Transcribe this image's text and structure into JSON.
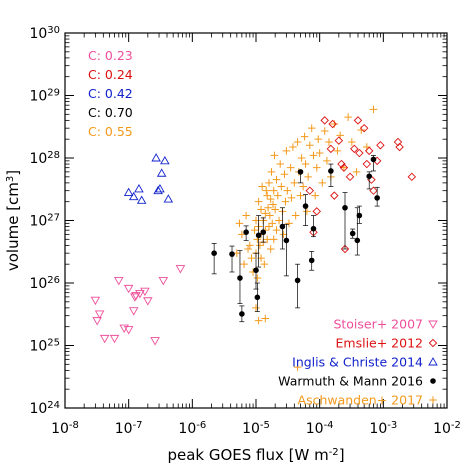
{
  "chart_data": {
    "type": "scatter",
    "xlabel": "peak GOES flux [W m",
    "xlabel_sup": "-2",
    "xlabel_end": "]",
    "ylabel": "volume [cm",
    "ylabel_sup": "3",
    "ylabel_end": "]",
    "x_scale": "log",
    "y_scale": "log",
    "xlim": [
      1e-08,
      0.01
    ],
    "ylim": [
      1e+24,
      1e+30
    ],
    "x_ticks": [
      {
        "value": 1e-08,
        "base": "10",
        "exp": "-8"
      },
      {
        "value": 1e-07,
        "base": "10",
        "exp": "-7"
      },
      {
        "value": 1e-06,
        "base": "10",
        "exp": "-6"
      },
      {
        "value": 1e-05,
        "base": "10",
        "exp": "-5"
      },
      {
        "value": 0.0001,
        "base": "10",
        "exp": "-4"
      },
      {
        "value": 0.001,
        "base": "10",
        "exp": "-3"
      },
      {
        "value": 0.01,
        "base": "10",
        "exp": "-2"
      }
    ],
    "y_ticks": [
      {
        "value": 1e+24,
        "base": "10",
        "exp": "24"
      },
      {
        "value": 1e+25,
        "base": "10",
        "exp": "25"
      },
      {
        "value": 1e+26,
        "base": "10",
        "exp": "26"
      },
      {
        "value": 1e+27,
        "base": "10",
        "exp": "27"
      },
      {
        "value": 1e+28,
        "base": "10",
        "exp": "28"
      },
      {
        "value": 1e+29,
        "base": "10",
        "exp": "29"
      },
      {
        "value": 1e+30,
        "base": "10",
        "exp": "30"
      }
    ],
    "correlations": [
      {
        "text": "C: 0.23",
        "color": "#ee4f9b"
      },
      {
        "text": "C: 0.24",
        "color": "#dd1111"
      },
      {
        "text": "C: 0.42",
        "color": "#1122cc"
      },
      {
        "text": "C: 0.70",
        "color": "#000000"
      },
      {
        "text": "C: 0.55",
        "color": "#f39a1d"
      }
    ],
    "series": [
      {
        "name": "Stoiser+ 2007",
        "marker": "triangle-down",
        "color": "#ee4f9b",
        "points": [
          [
            3e-08,
            5.3e+25
          ],
          [
            3.5e-08,
            3.2e+25
          ],
          [
            3.2e-08,
            2.5e+25
          ],
          [
            4.2e-08,
            1.3e+25
          ],
          [
            6e-08,
            1.3e+25
          ],
          [
            7e-08,
            1.1e+26
          ],
          [
            8.5e-08,
            1.9e+25
          ],
          [
            1e-07,
            1.8e+25
          ],
          [
            1e-07,
            8.2e+25
          ],
          [
            1.2e-07,
            3.6e+25
          ],
          [
            1.25e-07,
            6e+25
          ],
          [
            1.3e-07,
            6.3e+25
          ],
          [
            1.5e-07,
            6.8e+25
          ],
          [
            1.8e-07,
            7.4e+25
          ],
          [
            2e-07,
            5.2e+25
          ],
          [
            2.6e-07,
            1.2e+25
          ],
          [
            3.5e-07,
            1.1e+26
          ],
          [
            6.5e-07,
            1.7e+26
          ]
        ]
      },
      {
        "name": "Emslie+ 2012",
        "marker": "diamond",
        "color": "#dd1111",
        "points": [
          [
            7e-05,
            3e+27
          ],
          [
            8e-05,
            6.5e+26
          ],
          [
            9e-05,
            1.4e+27
          ],
          [
            0.00012,
            4e+28
          ],
          [
            0.00015,
            1.4e+28
          ],
          [
            0.00016,
            3.5e+28
          ],
          [
            0.00017,
            2.5e+27
          ],
          [
            0.0002,
            1.9e+28
          ],
          [
            0.00022,
            8e+27
          ],
          [
            0.00024,
            7e+27
          ],
          [
            0.00025,
            3.5e+26
          ],
          [
            0.0003,
            5e+27
          ],
          [
            0.00035,
            1.4e+28
          ],
          [
            0.0004,
            4e+28
          ],
          [
            0.00042,
            1.2e+28
          ],
          [
            0.0005,
            3e+28
          ],
          [
            0.00055,
            8e+27
          ],
          [
            0.0006,
            1.3e+28
          ],
          [
            0.00065,
            4.5e+27
          ],
          [
            0.0007,
            3e+27
          ],
          [
            0.0008,
            9e+27
          ],
          [
            0.0009,
            1.6e+28
          ],
          [
            0.0017,
            1.8e+28
          ],
          [
            0.0018,
            1.5e+28
          ],
          [
            0.0028,
            5e+27
          ]
        ]
      },
      {
        "name": "Inglis & Christe 2014",
        "marker": "triangle-up",
        "color": "#1122cc",
        "points": [
          [
            1e-07,
            2.8e+27
          ],
          [
            1.2e-07,
            2.4e+27
          ],
          [
            1.45e-07,
            3.2e+27
          ],
          [
            1.6e-07,
            2.1e+27
          ],
          [
            2.7e-07,
            1e+28
          ],
          [
            2.9e-07,
            3e+27
          ],
          [
            3.1e-07,
            3.2e+27
          ],
          [
            3.3e-07,
            5.7e+27
          ],
          [
            3.7e-07,
            9e+27
          ],
          [
            4.2e-07,
            2.2e+27
          ]
        ]
      },
      {
        "name": "Warmuth & Mann 2016",
        "marker": "circle",
        "color": "#000000",
        "points": [
          {
            "x": 2.2e-06,
            "y": 3e+26,
            "lo": 1.4e+26,
            "hi": 4.3e+26
          },
          {
            "x": 4.2e-06,
            "y": 2.9e+26,
            "lo": 1.5e+26,
            "hi": 3.9e+26
          },
          {
            "x": 5.6e-06,
            "y": 1.2e+26,
            "lo": 4.7e+25,
            "hi": 3.3e+26
          },
          {
            "x": 6e-06,
            "y": 3.2e+25,
            "lo": 2.4e+25,
            "hi": 4.3e+25
          },
          {
            "x": 7e-06,
            "y": 6.5e+26,
            "lo": 4.8e+26,
            "hi": 8.2e+26
          },
          {
            "x": 1e-05,
            "y": 1.6e+26,
            "lo": 8e+25,
            "hi": 3e+26
          },
          {
            "x": 1.05e-05,
            "y": 5.9e+25,
            "lo": 3.5e+25,
            "hi": 1e+26
          },
          {
            "x": 1.1e-05,
            "y": 5.8e+26,
            "lo": 1.8e+26,
            "hi": 1.2e+27
          },
          {
            "x": 1.3e-05,
            "y": 6.5e+26,
            "lo": 4.5e+26,
            "hi": 1.1e+27
          },
          {
            "x": 2.6e-05,
            "y": 8e+26,
            "lo": 3.5e+26,
            "hi": 1.6e+27
          },
          {
            "x": 3e-05,
            "y": 4.8e+26,
            "lo": 1.3e+26,
            "hi": 8.7e+26
          },
          {
            "x": 4.5e-05,
            "y": 1.1e+26,
            "lo": 4e+25,
            "hi": 2e+26
          },
          {
            "x": 5e-05,
            "y": 6e+27,
            "lo": 4e+27,
            "hi": 6.3e+27
          },
          {
            "x": 6e-05,
            "y": 1.7e+27,
            "lo": 8.3e+26,
            "hi": 2.6e+27
          },
          {
            "x": 7.5e-05,
            "y": 2.3e+26,
            "lo": 1.6e+26,
            "hi": 3.2e+26
          },
          {
            "x": 8e-05,
            "y": 7.4e+26,
            "lo": 5.5e+26,
            "hi": 1.2e+27
          },
          {
            "x": 0.00015,
            "y": 6.2e+27,
            "lo": 3.5e+27,
            "hi": 8e+27
          },
          {
            "x": 0.00025,
            "y": 1.6e+27,
            "lo": 3.5e+26,
            "hi": 2.8e+27
          },
          {
            "x": 0.00033,
            "y": 6.2e+26,
            "lo": 5.2e+26,
            "hi": 7.3e+26
          },
          {
            "x": 0.00039,
            "y": 4.8e+26,
            "lo": 2.8e+26,
            "hi": 1.6e+27
          },
          {
            "x": 0.00042,
            "y": 1.2e+27,
            "lo": 9e+26,
            "hi": 1.7e+27
          },
          {
            "x": 0.0006,
            "y": 5.1e+27,
            "lo": 3.2e+27,
            "hi": 6e+27
          },
          {
            "x": 0.0007,
            "y": 9.5e+27,
            "lo": 6.2e+27,
            "hi": 1.1e+28
          },
          {
            "x": 0.0008,
            "y": 2.3e+27,
            "lo": 1.7e+27,
            "hi": 3.4e+27
          }
        ]
      },
      {
        "name": "Aschwanden+ 2017",
        "marker": "plus",
        "color": "#f39a1d",
        "points": [
          [
            8e-06,
            4e+26
          ],
          [
            8.5e-06,
            2.5e+26
          ],
          [
            9e-06,
            1.5e+26
          ],
          [
            9.5e-06,
            7e+26
          ],
          [
            1e-05,
            1e+27
          ],
          [
            1e-05,
            3e+26
          ],
          [
            1.05e-05,
            1.2e+26
          ],
          [
            1.05e-05,
            5e+26
          ],
          [
            1.1e-05,
            2e+27
          ],
          [
            1.1e-05,
            8e+26
          ],
          [
            1.15e-05,
            4e+26
          ],
          [
            1.2e-05,
            1.5e+27
          ],
          [
            1.2e-05,
            6e+26
          ],
          [
            1.2e-05,
            2.5e+26
          ],
          [
            1.25e-05,
            3.5e+27
          ],
          [
            1.3e-05,
            1e+27
          ],
          [
            1.3e-05,
            4.5e+26
          ],
          [
            1.35e-05,
            2e+26
          ],
          [
            1.4e-05,
            1.3e+27
          ],
          [
            1.4e-05,
            7e+26
          ],
          [
            1.45e-05,
            3e+27
          ],
          [
            1.5e-05,
            5e+26
          ],
          [
            1.5e-05,
            2.5e+27
          ],
          [
            1.55e-05,
            1.6e+27
          ],
          [
            1.6e-05,
            8e+26
          ],
          [
            1.6e-05,
            4e+27
          ],
          [
            1.65e-05,
            1.2e+27
          ],
          [
            1.7e-05,
            3.5e+26
          ],
          [
            1.7e-05,
            2.2e+27
          ],
          [
            1.75e-05,
            6e+27
          ],
          [
            1.8e-05,
            9e+26
          ],
          [
            1.85e-05,
            1.8e+27
          ],
          [
            1.9e-05,
            5e+26
          ],
          [
            1.9e-05,
            3e+27
          ],
          [
            1.95e-05,
            1.1e+28
          ],
          [
            2e-05,
            1.5e+27
          ],
          [
            2.1e-05,
            7e+26
          ],
          [
            2.1e-05,
            4.5e+27
          ],
          [
            2.2e-05,
            2.5e+27
          ],
          [
            2.3e-05,
            1e+27
          ],
          [
            2.4e-05,
            8e+27
          ],
          [
            2.5e-05,
            3.5e+27
          ],
          [
            2.6e-05,
            1.4e+27
          ],
          [
            2.7e-05,
            6e+26
          ],
          [
            2.8e-05,
            5.5e+27
          ],
          [
            2.9e-05,
            2e+27
          ],
          [
            3e-05,
            1.3e+28
          ],
          [
            3.1e-05,
            3e+27
          ],
          [
            3.3e-05,
            9e+26
          ],
          [
            3.5e-05,
            7e+27
          ],
          [
            3.6e-05,
            2.3e+27
          ],
          [
            3.8e-05,
            1.5e+28
          ],
          [
            4e-05,
            4e+27
          ],
          [
            4.2e-05,
            1.2e+27
          ],
          [
            4.5e-05,
            1.8e+28
          ],
          [
            4.7e-05,
            6e+27
          ],
          [
            5e-05,
            2.5e+27
          ],
          [
            5.2e-05,
            1e+28
          ],
          [
            5.5e-05,
            3.5e+27
          ],
          [
            5.8e-05,
            2.2e+28
          ],
          [
            6e-05,
            8e+27
          ],
          [
            6.3e-05,
            1.4e+27
          ],
          [
            6.6e-05,
            5e+27
          ],
          [
            7e-05,
            1.6e+28
          ],
          [
            7.5e-05,
            3e+28
          ],
          [
            8e-05,
            1.1e+28
          ],
          [
            8.5e-05,
            2.5e+27
          ],
          [
            9e-05,
            7e+27
          ],
          [
            9.5e-05,
            2e+28
          ],
          [
            0.0001,
            1.2e+28
          ],
          [
            0.00011,
            4e+27
          ],
          [
            0.00012,
            2.7e+28
          ],
          [
            0.00013,
            9e+27
          ],
          [
            0.00014,
            1.8e+28
          ],
          [
            0.00015,
            5e+27
          ],
          [
            0.00017,
            3.5e+28
          ],
          [
            0.00019,
            1.3e+28
          ],
          [
            0.00021,
            2.3e+28
          ],
          [
            0.00024,
            7e+27
          ],
          [
            0.00028,
            4.5e+28
          ],
          [
            0.00032,
            1.8e+28
          ],
          [
            0.00038,
            6e+27
          ],
          [
            0.00045,
            2.8e+28
          ],
          [
            0.00055,
            1.5e+28
          ],
          [
            0.0007,
            6e+28
          ],
          [
            6e-06,
            6e+26
          ],
          [
            6.5e-06,
            2e+26
          ],
          [
            7e-06,
            1.2e+27
          ],
          [
            7.5e-06,
            3.5e+26
          ],
          [
            5.5e-06,
            9e+26
          ],
          [
            1e-05,
            4e+25
          ],
          [
            1.1e-05,
            2.5e+25
          ],
          [
            1.4e-05,
            2.7e+25
          ],
          [
            5e-06,
            3e+26
          ],
          [
            4.5e-05,
            4.5e+24
          ]
        ]
      }
    ]
  }
}
